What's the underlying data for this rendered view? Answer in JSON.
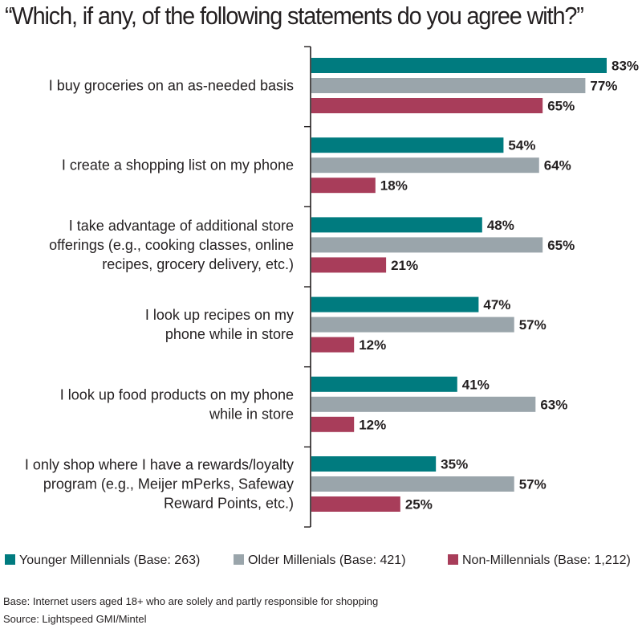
{
  "title": "“Which, if any, of the following statements do you agree with?”",
  "chart_data": {
    "type": "bar",
    "orientation": "horizontal",
    "value_format": "percent",
    "categories": [
      [
        "I buy groceries on an as-needed basis"
      ],
      [
        "I create a shopping list on my phone"
      ],
      [
        "I take advantage of additional store",
        "offerings (e.g., cooking classes, online",
        "recipes, grocery delivery, etc.)"
      ],
      [
        "I look up recipes on my",
        "phone while in store"
      ],
      [
        "I look up food products on my phone",
        "while in store"
      ],
      [
        "I only shop where I have a rewards/loyalty",
        "program (e.g., Meijer mPerks, Safeway",
        "Reward Points, etc.)"
      ]
    ],
    "series": [
      {
        "name": "Younger Millennials (Base: 263)",
        "color": "#007b7f",
        "values": [
          83,
          54,
          48,
          47,
          41,
          35
        ]
      },
      {
        "name": "Older Millenials (Base: 421)",
        "color": "#9aa5ab",
        "values": [
          77,
          64,
          65,
          57,
          63,
          57
        ]
      },
      {
        "name": "Non-Millennials (Base: 1,212)",
        "color": "#a83d5a",
        "values": [
          65,
          18,
          21,
          12,
          12,
          25
        ]
      }
    ],
    "xlim": [
      0,
      83
    ],
    "legend_position": "bottom",
    "grid": false
  },
  "footnotes": {
    "base": "Base: Internet users aged 18+ who are solely and partly responsible for shopping",
    "source": "Source: Lightspeed GMI/Mintel"
  }
}
